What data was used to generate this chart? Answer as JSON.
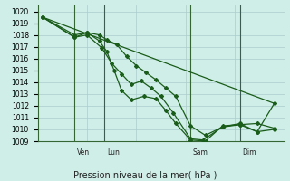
{
  "title": "",
  "xlabel": "Pression niveau de la mer( hPa )",
  "ylabel": "",
  "ylim": [
    1009,
    1020.5
  ],
  "yticks": [
    1009,
    1010,
    1011,
    1012,
    1013,
    1014,
    1015,
    1016,
    1017,
    1018,
    1019,
    1020
  ],
  "background_color": "#d0eee8",
  "grid_color": "#aacccc",
  "line_color": "#1a5c1a",
  "vline_color": "#336633",
  "vline_positions": [
    0.15,
    0.27,
    0.62,
    0.82
  ],
  "vline_labels": [
    "Ven",
    "Lun",
    "Sam",
    "Dim"
  ],
  "series": [
    {
      "x": [
        0.02,
        0.15,
        0.2,
        0.25,
        0.28,
        0.32,
        0.36,
        0.4,
        0.44,
        0.48,
        0.52,
        0.56,
        0.62,
        0.68,
        0.75,
        0.82,
        0.89,
        0.96
      ],
      "y": [
        1019.5,
        1018.0,
        1018.2,
        1018.0,
        1017.6,
        1017.2,
        1016.2,
        1015.4,
        1014.8,
        1014.2,
        1013.5,
        1012.8,
        1010.3,
        1009.5,
        1010.2,
        1010.5,
        1009.8,
        1010.0
      ]
    },
    {
      "x": [
        0.02,
        0.15,
        0.2,
        0.26,
        0.3,
        0.34,
        0.38,
        0.42,
        0.46,
        0.5,
        0.55,
        0.62,
        0.67,
        0.75,
        0.82,
        0.89,
        0.96
      ],
      "y": [
        1019.5,
        1017.8,
        1018.0,
        1016.9,
        1015.6,
        1014.7,
        1013.8,
        1014.1,
        1013.5,
        1012.8,
        1011.4,
        1009.2,
        1009.1,
        1010.2,
        1010.4,
        1010.5,
        1010.1
      ]
    },
    {
      "x": [
        0.02,
        0.15,
        0.2,
        0.25,
        0.28,
        0.31,
        0.34,
        0.38,
        0.43,
        0.48,
        0.52,
        0.56,
        0.62,
        0.68,
        0.75,
        0.82,
        0.89,
        0.96
      ],
      "y": [
        1019.5,
        1017.8,
        1018.2,
        1017.5,
        1016.6,
        1015.0,
        1013.3,
        1012.5,
        1012.8,
        1012.6,
        1011.6,
        1010.5,
        1009.1,
        1009.0,
        1010.3,
        1010.4,
        1009.8,
        1012.2
      ]
    },
    {
      "x": [
        0.02,
        0.96
      ],
      "y": [
        1019.5,
        1012.2
      ]
    }
  ]
}
